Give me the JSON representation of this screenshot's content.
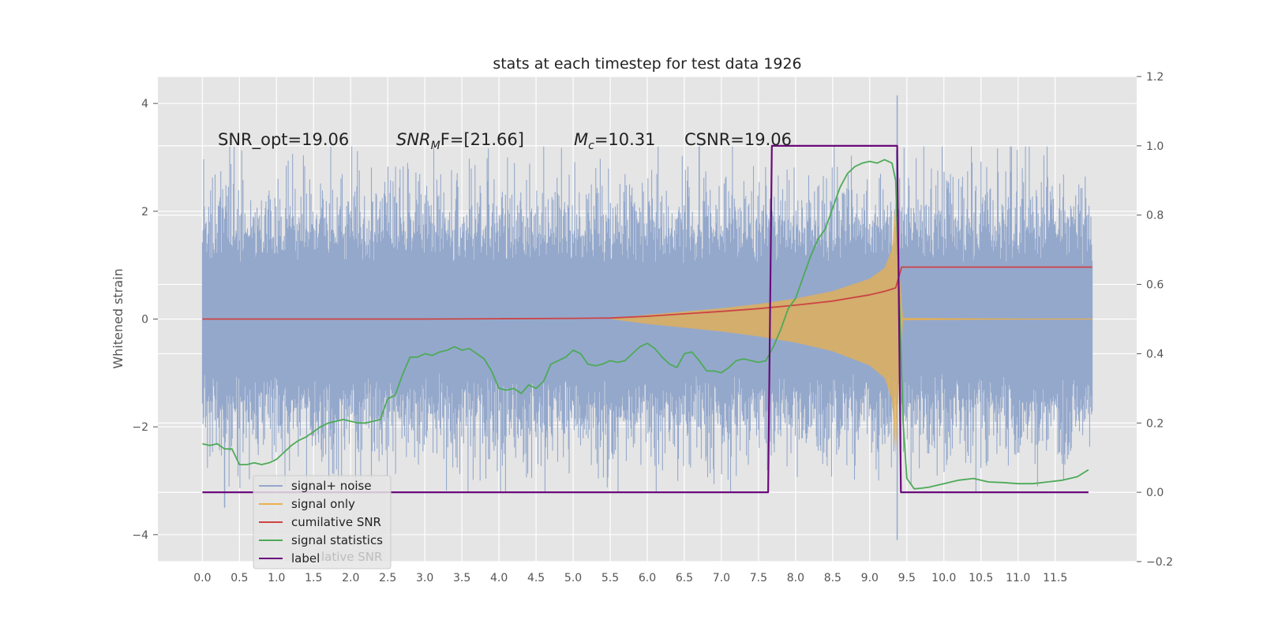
{
  "chart_data": {
    "type": "line",
    "title": "stats at each timestep for test data 1926",
    "xlabel": "",
    "ylabel": "Whitened strain",
    "xlim": [
      -0.6,
      12.6
    ],
    "ylim": [
      -4.5,
      4.5
    ],
    "y2lim": [
      -0.2,
      1.2
    ],
    "x_ticks": [
      "0.0",
      "0.5",
      "1.0",
      "1.5",
      "2.0",
      "2.5",
      "3.0",
      "3.5",
      "4.0",
      "4.5",
      "5.0",
      "5.5",
      "6.0",
      "6.5",
      "7.0",
      "7.5",
      "8.0",
      "8.5",
      "9.0",
      "9.5",
      "10.0",
      "10.5",
      "11.0",
      "11.5"
    ],
    "y_ticks": [
      "4",
      "2",
      "0",
      "−2",
      "−4"
    ],
    "y2_ticks": [
      "1.2",
      "1.0",
      "0.8",
      "0.6",
      "0.4",
      "0.2",
      "0.0",
      "−0.2"
    ],
    "annotations": {
      "snr_opt": "SNR_opt=19.06",
      "snr_mf_main": "SNR",
      "snr_mf_sub": "M",
      "snr_mf_rest": "F=[21.66]",
      "mc_main": "M",
      "mc_sub": "c",
      "mc_rest": "=10.31",
      "csnr": "CSNR=19.06"
    },
    "legend": {
      "placement": "lower-left",
      "entries": [
        "signal+ noise",
        "signal only",
        "cumilative SNR",
        "signal statistics",
        "label"
      ],
      "ghost_text": "lative SNR"
    },
    "colors": {
      "signal_noise": "#94a8cc",
      "signal_only": "#e8b04e",
      "cumulative_snr": "#cc4444",
      "signal_statistics": "#4daa57",
      "label": "#6a0b7a",
      "background": "#e5e5e5",
      "grid": "#ffffff"
    },
    "series": [
      {
        "name": "signal+ noise",
        "axis": "left",
        "kind": "noise",
        "x_range": [
          0.0,
          12.0
        ],
        "envelope": 2.3,
        "notable_peaks": [
          [
            9.37,
            4.15
          ],
          [
            9.37,
            -4.1
          ],
          [
            6.7,
            3.2
          ],
          [
            0.3,
            -3.5
          ]
        ]
      },
      {
        "name": "signal only",
        "axis": "left",
        "kind": "chirp",
        "x": [
          5.5,
          6.0,
          6.5,
          7.0,
          7.5,
          8.0,
          8.5,
          9.0,
          9.2,
          9.3,
          9.35,
          9.4,
          9.45,
          12.0
        ],
        "amplitude": [
          0.0,
          0.08,
          0.14,
          0.2,
          0.28,
          0.38,
          0.52,
          0.75,
          0.95,
          1.3,
          2.2,
          0.9,
          0.02,
          0.0
        ]
      },
      {
        "name": "cumilative SNR",
        "axis": "right",
        "x": [
          0.0,
          1.0,
          2.0,
          3.0,
          4.0,
          5.0,
          5.5,
          6.0,
          6.5,
          7.0,
          7.5,
          8.0,
          8.5,
          9.0,
          9.2,
          9.35,
          9.43,
          12.0
        ],
        "values": [
          0.5,
          0.5,
          0.5,
          0.5,
          0.501,
          0.502,
          0.503,
          0.508,
          0.515,
          0.522,
          0.53,
          0.54,
          0.552,
          0.57,
          0.58,
          0.59,
          0.65,
          0.65
        ]
      },
      {
        "name": "signal statistics",
        "axis": "right",
        "x": [
          0.0,
          0.1,
          0.2,
          0.3,
          0.4,
          0.5,
          0.6,
          0.7,
          0.8,
          0.9,
          1.0,
          1.1,
          1.2,
          1.3,
          1.4,
          1.5,
          1.6,
          1.7,
          1.8,
          1.9,
          2.0,
          2.1,
          2.2,
          2.3,
          2.4,
          2.5,
          2.6,
          2.7,
          2.8,
          2.9,
          3.0,
          3.1,
          3.2,
          3.3,
          3.4,
          3.5,
          3.6,
          3.7,
          3.8,
          3.9,
          4.0,
          4.1,
          4.2,
          4.3,
          4.4,
          4.5,
          4.6,
          4.7,
          4.8,
          4.9,
          5.0,
          5.1,
          5.2,
          5.3,
          5.4,
          5.5,
          5.6,
          5.7,
          5.8,
          5.9,
          6.0,
          6.1,
          6.2,
          6.3,
          6.4,
          6.5,
          6.6,
          6.7,
          6.8,
          6.9,
          7.0,
          7.1,
          7.2,
          7.3,
          7.4,
          7.5,
          7.6,
          7.7,
          7.8,
          7.9,
          8.0,
          8.1,
          8.2,
          8.3,
          8.4,
          8.5,
          8.6,
          8.7,
          8.8,
          8.9,
          9.0,
          9.1,
          9.2,
          9.3,
          9.35,
          9.4,
          9.45,
          9.5,
          9.6,
          9.7,
          9.8,
          9.9,
          10.0,
          10.2,
          10.4,
          10.6,
          10.8,
          11.0,
          11.2,
          11.4,
          11.6,
          11.8,
          11.95
        ],
        "values": [
          0.14,
          0.135,
          0.14,
          0.125,
          0.125,
          0.08,
          0.08,
          0.085,
          0.08,
          0.085,
          0.095,
          0.115,
          0.135,
          0.15,
          0.16,
          0.175,
          0.19,
          0.2,
          0.205,
          0.21,
          0.205,
          0.2,
          0.2,
          0.205,
          0.21,
          0.27,
          0.28,
          0.34,
          0.39,
          0.39,
          0.4,
          0.395,
          0.405,
          0.41,
          0.42,
          0.41,
          0.415,
          0.4,
          0.385,
          0.35,
          0.3,
          0.295,
          0.3,
          0.285,
          0.31,
          0.3,
          0.32,
          0.37,
          0.38,
          0.39,
          0.41,
          0.4,
          0.37,
          0.365,
          0.37,
          0.38,
          0.375,
          0.38,
          0.4,
          0.42,
          0.43,
          0.415,
          0.39,
          0.37,
          0.36,
          0.4,
          0.405,
          0.38,
          0.35,
          0.35,
          0.345,
          0.36,
          0.38,
          0.385,
          0.38,
          0.375,
          0.38,
          0.42,
          0.47,
          0.53,
          0.56,
          0.62,
          0.68,
          0.73,
          0.76,
          0.82,
          0.88,
          0.92,
          0.94,
          0.95,
          0.955,
          0.95,
          0.96,
          0.95,
          0.9,
          0.55,
          0.2,
          0.04,
          0.01,
          0.012,
          0.015,
          0.02,
          0.025,
          0.035,
          0.04,
          0.03,
          0.028,
          0.025,
          0.025,
          0.03,
          0.035,
          0.045,
          0.065
        ]
      },
      {
        "name": "label",
        "axis": "right",
        "x": [
          0.0,
          7.63,
          7.68,
          9.37,
          9.42,
          11.95
        ],
        "values": [
          0.0,
          0.0,
          1.0,
          1.0,
          0.0,
          0.0
        ]
      }
    ]
  }
}
